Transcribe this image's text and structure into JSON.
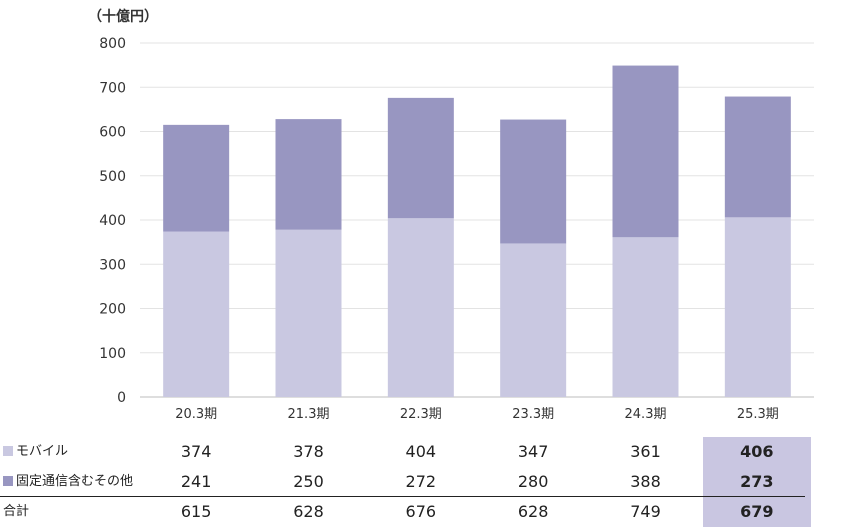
{
  "chart_data": {
    "type": "bar",
    "stacked": true,
    "unit": "（十億円）",
    "categories": [
      "20.3期",
      "21.3期",
      "22.3期",
      "23.3期",
      "24.3期",
      "25.3期"
    ],
    "series": [
      {
        "name": "モバイル",
        "values": [
          374,
          378,
          404,
          347,
          361,
          406
        ],
        "color": "#c9c8e1"
      },
      {
        "name": "固定通信含むその他",
        "values": [
          241,
          250,
          272,
          280,
          388,
          273
        ],
        "color": "#9896c1"
      }
    ],
    "ylim": [
      0,
      800
    ],
    "yticks": [
      "0",
      "100",
      "200",
      "300",
      "400",
      "500",
      "600",
      "700",
      "800"
    ],
    "grid": true,
    "highlight_color": "#c9c6e1"
  },
  "table": {
    "rows": [
      {
        "label": "モバイル",
        "swatch": "#c9c8e1",
        "values": [
          "374",
          "378",
          "404",
          "347",
          "361",
          "406"
        ]
      },
      {
        "label": "固定通信含むその他",
        "swatch": "#9896c1",
        "values": [
          "241",
          "250",
          "272",
          "280",
          "388",
          "273"
        ]
      },
      {
        "label": "合計",
        "swatch": "",
        "values": [
          "615",
          "628",
          "676",
          "628",
          "749",
          "679"
        ]
      }
    ],
    "highlight_column": 5
  }
}
